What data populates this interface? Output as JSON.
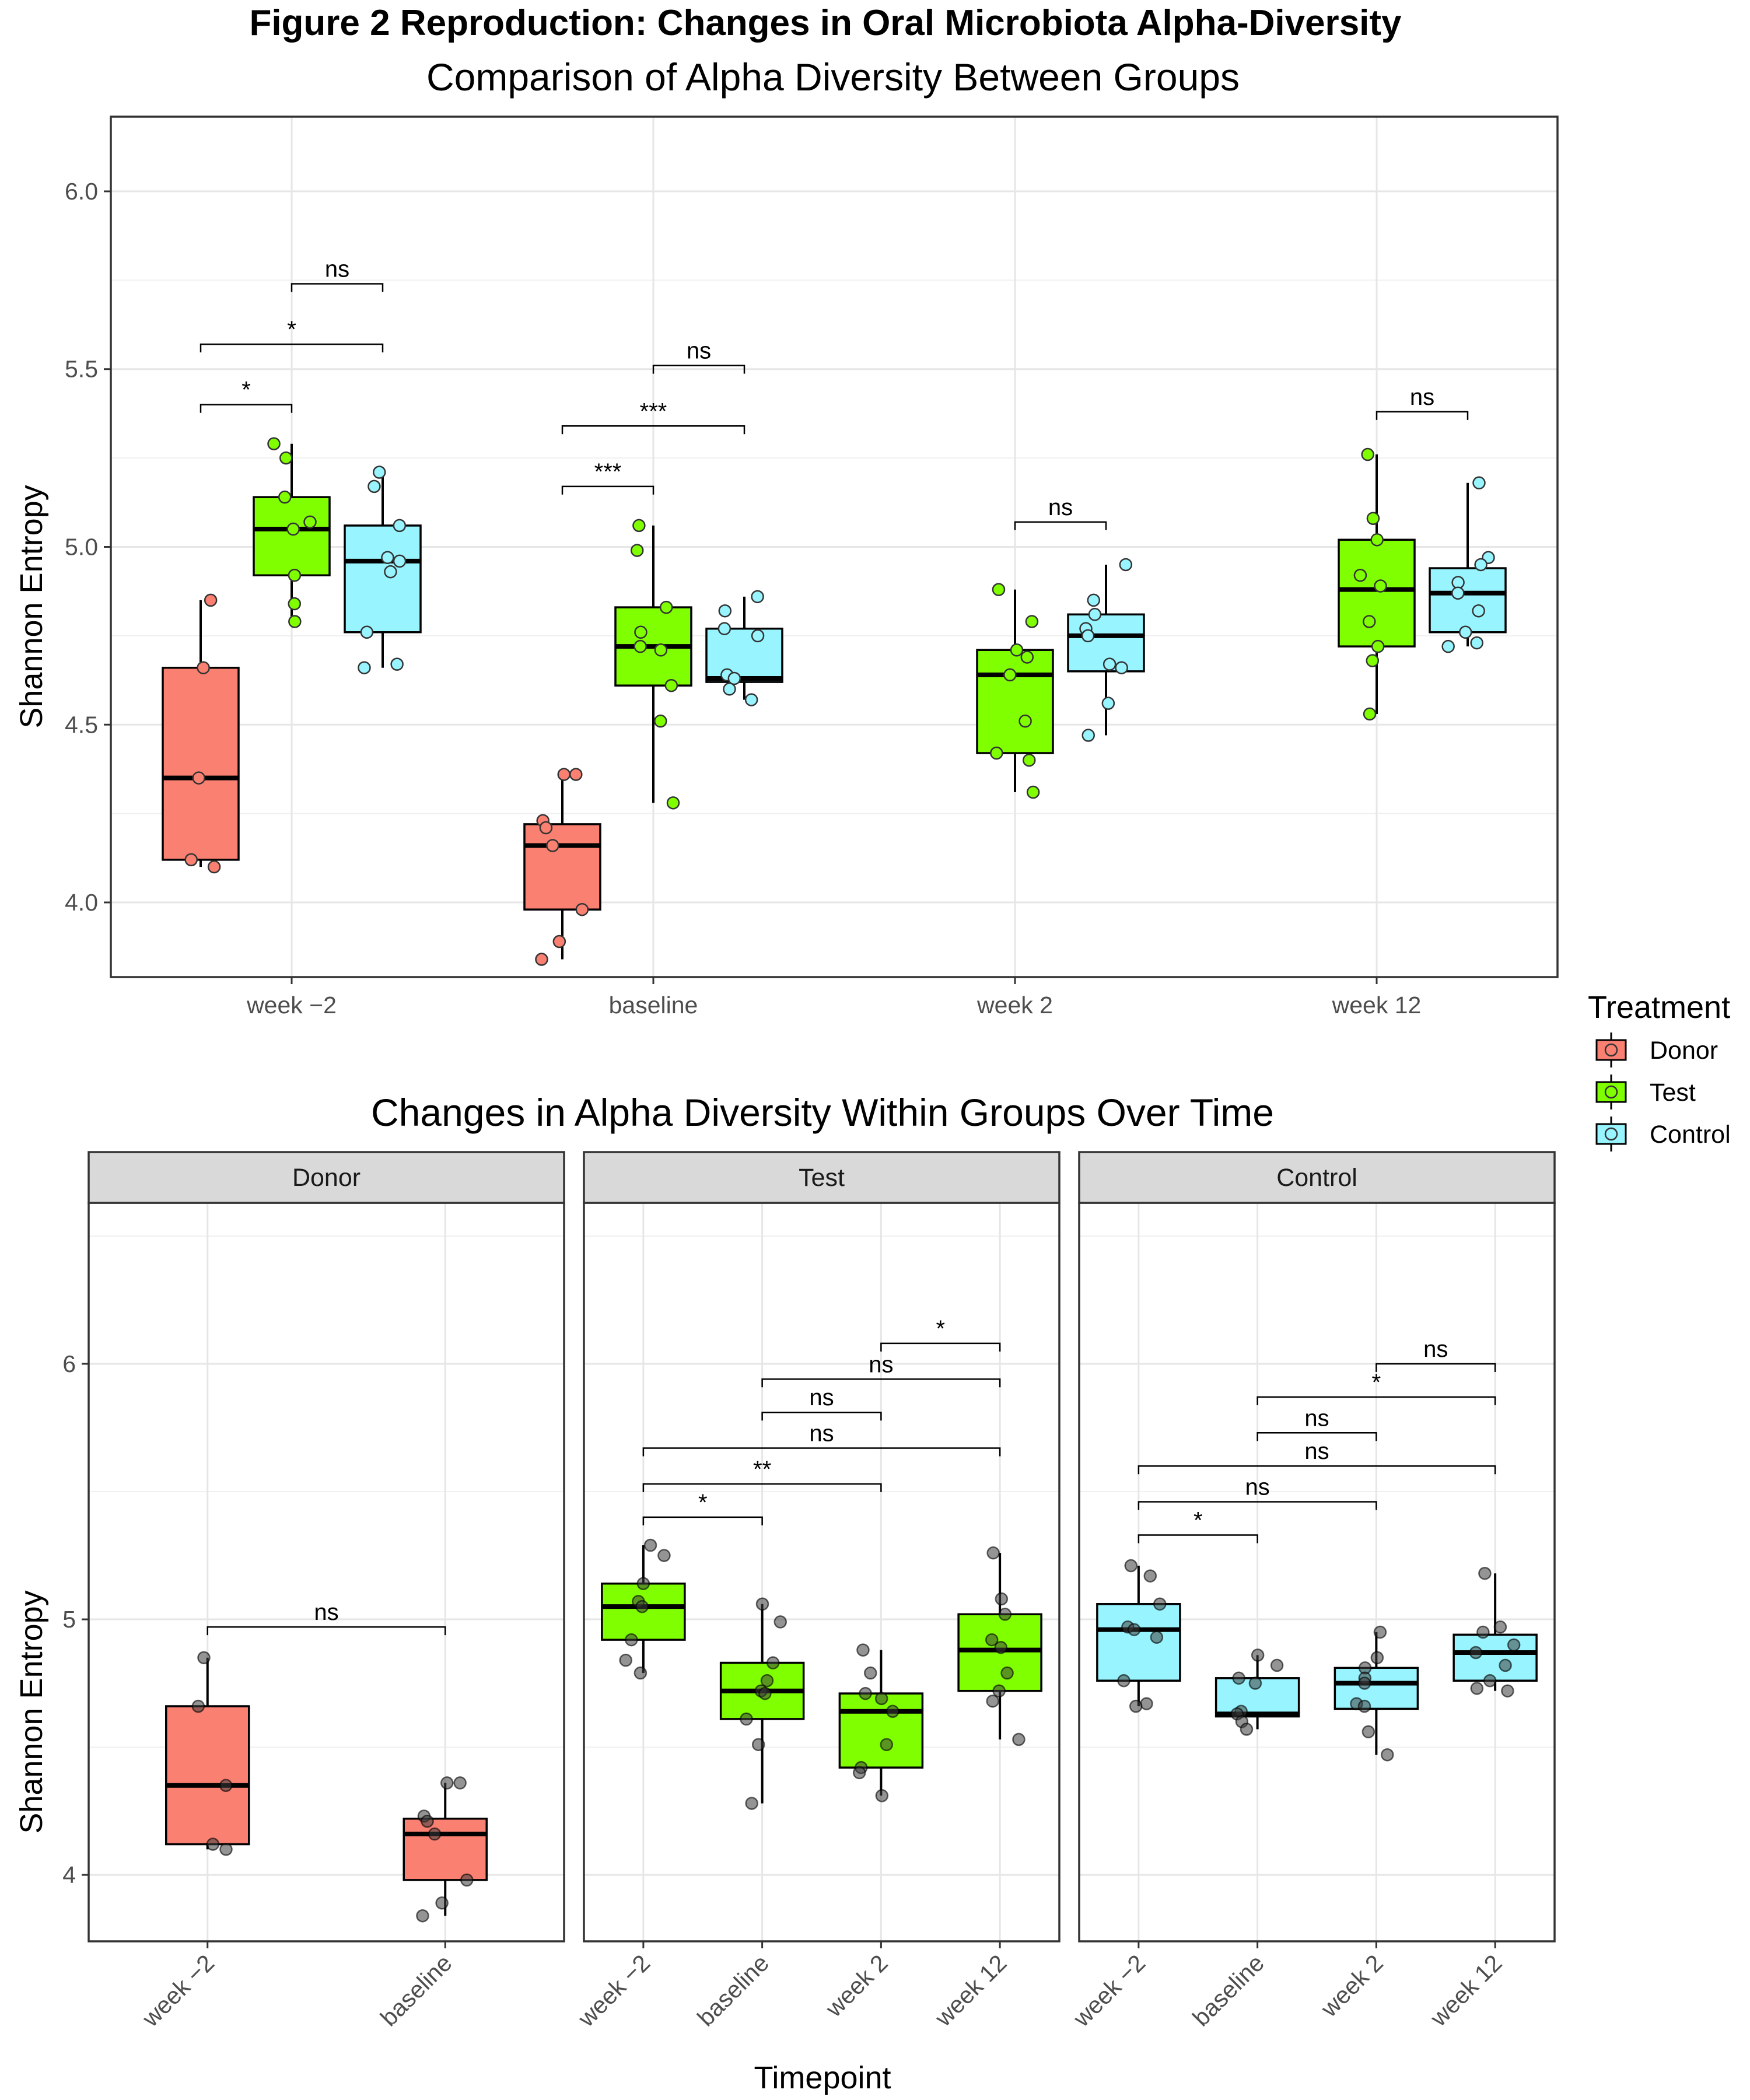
{
  "figure": {
    "title": "Figure 2 Reproduction: Changes in Oral Microbiota Alpha-Diversity"
  },
  "legend": {
    "title": "Treatment",
    "items": [
      {
        "label": "Donor",
        "color": "#FA8072"
      },
      {
        "label": "Test",
        "color": "#7FFF00"
      },
      {
        "label": "Control",
        "color": "#98F5FF"
      }
    ]
  },
  "colors": {
    "Donor": "#FA8072",
    "Test": "#7FFF00",
    "Control": "#98F5FF"
  },
  "chart_data": [
    {
      "type": "box",
      "title": "Comparison of Alpha Diversity Between Groups",
      "xlabel": "",
      "ylabel": "Shannon Entropy",
      "ylim": [
        3.79,
        6.21
      ],
      "yticks": [
        4.0,
        4.5,
        5.0,
        5.5,
        6.0
      ],
      "ytick_labels": [
        "4.0",
        "4.5",
        "5.0",
        "5.5",
        "6.0"
      ],
      "categories": [
        "week −2",
        "baseline",
        "week 2",
        "week 12"
      ],
      "grid": true,
      "legend_position": "right",
      "boxes": [
        {
          "category": "week −2",
          "group": "Donor",
          "q1": 4.12,
          "median": 4.35,
          "q3": 4.66,
          "whisker_low": 4.1,
          "whisker_high": 4.85,
          "points": [
            4.85,
            4.66,
            4.35,
            4.12,
            4.1
          ]
        },
        {
          "category": "week −2",
          "group": "Test",
          "q1": 4.92,
          "median": 5.05,
          "q3": 5.14,
          "whisker_low": 4.79,
          "whisker_high": 5.29,
          "points": [
            5.29,
            5.25,
            5.14,
            5.07,
            5.05,
            4.92,
            4.84,
            4.79
          ]
        },
        {
          "category": "week −2",
          "group": "Control",
          "q1": 4.76,
          "median": 4.96,
          "q3": 5.06,
          "whisker_low": 4.66,
          "whisker_high": 5.21,
          "points": [
            5.21,
            5.17,
            5.06,
            4.97,
            4.96,
            4.93,
            4.76,
            4.67,
            4.66
          ]
        },
        {
          "category": "baseline",
          "group": "Donor",
          "q1": 3.98,
          "median": 4.16,
          "q3": 4.22,
          "whisker_low": 3.84,
          "whisker_high": 4.36,
          "points": [
            4.36,
            4.36,
            4.23,
            4.21,
            4.16,
            3.98,
            3.89,
            3.84
          ]
        },
        {
          "category": "baseline",
          "group": "Test",
          "q1": 4.61,
          "median": 4.72,
          "q3": 4.83,
          "whisker_low": 4.28,
          "whisker_high": 5.06,
          "points": [
            5.06,
            4.99,
            4.83,
            4.76,
            4.72,
            4.71,
            4.61,
            4.51,
            4.28
          ]
        },
        {
          "category": "baseline",
          "group": "Control",
          "q1": 4.62,
          "median": 4.63,
          "q3": 4.77,
          "whisker_low": 4.57,
          "whisker_high": 4.86,
          "points": [
            4.86,
            4.82,
            4.77,
            4.75,
            4.64,
            4.63,
            4.6,
            4.57
          ]
        },
        {
          "category": "week 2",
          "group": "Test",
          "q1": 4.42,
          "median": 4.64,
          "q3": 4.71,
          "whisker_low": 4.31,
          "whisker_high": 4.88,
          "points": [
            4.88,
            4.79,
            4.71,
            4.69,
            4.64,
            4.51,
            4.42,
            4.4,
            4.31
          ]
        },
        {
          "category": "week 2",
          "group": "Control",
          "q1": 4.65,
          "median": 4.75,
          "q3": 4.81,
          "whisker_low": 4.47,
          "whisker_high": 4.95,
          "points": [
            4.95,
            4.85,
            4.81,
            4.77,
            4.75,
            4.67,
            4.66,
            4.56,
            4.47
          ]
        },
        {
          "category": "week 12",
          "group": "Test",
          "q1": 4.72,
          "median": 4.88,
          "q3": 5.02,
          "whisker_low": 4.53,
          "whisker_high": 5.26,
          "points": [
            5.26,
            5.08,
            5.02,
            4.92,
            4.89,
            4.79,
            4.72,
            4.68,
            4.53
          ]
        },
        {
          "category": "week 12",
          "group": "Control",
          "q1": 4.76,
          "median": 4.87,
          "q3": 4.94,
          "whisker_low": 4.72,
          "whisker_high": 5.18,
          "points": [
            5.18,
            4.97,
            4.95,
            4.9,
            4.87,
            4.82,
            4.76,
            4.73,
            4.72
          ]
        }
      ],
      "significance": [
        {
          "category": "week −2",
          "from_group": "Donor",
          "to_group": "Test",
          "y": 5.4,
          "label": "*"
        },
        {
          "category": "week −2",
          "from_group": "Donor",
          "to_group": "Control",
          "y": 5.57,
          "label": "*"
        },
        {
          "category": "week −2",
          "from_group": "Test",
          "to_group": "Control",
          "y": 5.74,
          "label": "ns"
        },
        {
          "category": "baseline",
          "from_group": "Donor",
          "to_group": "Test",
          "y": 5.17,
          "label": "***"
        },
        {
          "category": "baseline",
          "from_group": "Donor",
          "to_group": "Control",
          "y": 5.34,
          "label": "***"
        },
        {
          "category": "baseline",
          "from_group": "Test",
          "to_group": "Control",
          "y": 5.51,
          "label": "ns"
        },
        {
          "category": "week 2",
          "from_group": "Test",
          "to_group": "Control",
          "y": 5.07,
          "label": "ns"
        },
        {
          "category": "week 12",
          "from_group": "Test",
          "to_group": "Control",
          "y": 5.38,
          "label": "ns"
        }
      ]
    },
    {
      "type": "box",
      "title": "Changes in Alpha Diversity Within Groups Over Time",
      "xlabel": "Timepoint",
      "ylabel": "Shannon Entropy",
      "ylim": [
        3.74,
        6.63
      ],
      "yticks": [
        4,
        5,
        6
      ],
      "ytick_labels": [
        "4",
        "5",
        "6"
      ],
      "grid": true,
      "facets": [
        {
          "label": "Donor",
          "categories": [
            "week −2",
            "baseline"
          ],
          "boxes": [
            {
              "category": "week −2",
              "q1": 4.12,
              "median": 4.35,
              "q3": 4.66,
              "whisker_low": 4.1,
              "whisker_high": 4.85,
              "points": [
                4.85,
                4.66,
                4.35,
                4.12,
                4.1
              ]
            },
            {
              "category": "baseline",
              "q1": 3.98,
              "median": 4.16,
              "q3": 4.22,
              "whisker_low": 3.84,
              "whisker_high": 4.36,
              "points": [
                4.36,
                4.36,
                4.23,
                4.21,
                4.16,
                3.98,
                3.89,
                3.84
              ]
            }
          ],
          "significance": [
            {
              "from": "week −2",
              "to": "baseline",
              "y": 4.97,
              "label": "ns"
            }
          ]
        },
        {
          "label": "Test",
          "categories": [
            "week −2",
            "baseline",
            "week 2",
            "week 12"
          ],
          "boxes": [
            {
              "category": "week −2",
              "q1": 4.92,
              "median": 5.05,
              "q3": 5.14,
              "whisker_low": 4.79,
              "whisker_high": 5.29,
              "points": [
                5.29,
                5.25,
                5.14,
                5.07,
                5.05,
                4.92,
                4.84,
                4.79
              ]
            },
            {
              "category": "baseline",
              "q1": 4.61,
              "median": 4.72,
              "q3": 4.83,
              "whisker_low": 4.28,
              "whisker_high": 5.06,
              "points": [
                5.06,
                4.99,
                4.83,
                4.76,
                4.72,
                4.71,
                4.61,
                4.51,
                4.28
              ]
            },
            {
              "category": "week 2",
              "q1": 4.42,
              "median": 4.64,
              "q3": 4.71,
              "whisker_low": 4.31,
              "whisker_high": 4.88,
              "points": [
                4.88,
                4.79,
                4.71,
                4.69,
                4.64,
                4.51,
                4.42,
                4.4,
                4.31
              ]
            },
            {
              "category": "week 12",
              "q1": 4.72,
              "median": 4.88,
              "q3": 5.02,
              "whisker_low": 4.53,
              "whisker_high": 5.26,
              "points": [
                5.26,
                5.08,
                5.02,
                4.92,
                4.89,
                4.79,
                4.72,
                4.68,
                4.53
              ]
            }
          ],
          "significance": [
            {
              "from": "week −2",
              "to": "baseline",
              "y": 5.4,
              "label": "*"
            },
            {
              "from": "week −2",
              "to": "week 2",
              "y": 5.53,
              "label": "**"
            },
            {
              "from": "week −2",
              "to": "week 12",
              "y": 5.67,
              "label": "ns"
            },
            {
              "from": "baseline",
              "to": "week 2",
              "y": 5.81,
              "label": "ns"
            },
            {
              "from": "baseline",
              "to": "week 12",
              "y": 5.94,
              "label": "ns"
            },
            {
              "from": "week 2",
              "to": "week 12",
              "y": 6.08,
              "label": "*"
            }
          ]
        },
        {
          "label": "Control",
          "categories": [
            "week −2",
            "baseline",
            "week 2",
            "week 12"
          ],
          "boxes": [
            {
              "category": "week −2",
              "q1": 4.76,
              "median": 4.96,
              "q3": 5.06,
              "whisker_low": 4.66,
              "whisker_high": 5.21,
              "points": [
                5.21,
                5.17,
                5.06,
                4.97,
                4.96,
                4.93,
                4.76,
                4.67,
                4.66
              ]
            },
            {
              "category": "baseline",
              "q1": 4.62,
              "median": 4.63,
              "q3": 4.77,
              "whisker_low": 4.57,
              "whisker_high": 4.86,
              "points": [
                4.86,
                4.82,
                4.77,
                4.75,
                4.64,
                4.63,
                4.6,
                4.57
              ]
            },
            {
              "category": "week 2",
              "q1": 4.65,
              "median": 4.75,
              "q3": 4.81,
              "whisker_low": 4.47,
              "whisker_high": 4.95,
              "points": [
                4.95,
                4.85,
                4.81,
                4.77,
                4.75,
                4.67,
                4.66,
                4.56,
                4.47
              ]
            },
            {
              "category": "week 12",
              "q1": 4.76,
              "median": 4.87,
              "q3": 4.94,
              "whisker_low": 4.72,
              "whisker_high": 5.18,
              "points": [
                5.18,
                4.97,
                4.95,
                4.9,
                4.87,
                4.82,
                4.76,
                4.73,
                4.72
              ]
            }
          ],
          "significance": [
            {
              "from": "week −2",
              "to": "baseline",
              "y": 5.33,
              "label": "*"
            },
            {
              "from": "week −2",
              "to": "week 2",
              "y": 5.46,
              "label": "ns"
            },
            {
              "from": "week −2",
              "to": "week 12",
              "y": 5.6,
              "label": "ns"
            },
            {
              "from": "baseline",
              "to": "week 2",
              "y": 5.73,
              "label": "ns"
            },
            {
              "from": "baseline",
              "to": "week 12",
              "y": 5.87,
              "label": "*"
            },
            {
              "from": "week 2",
              "to": "week 12",
              "y": 6.0,
              "label": "ns"
            }
          ]
        }
      ]
    }
  ]
}
